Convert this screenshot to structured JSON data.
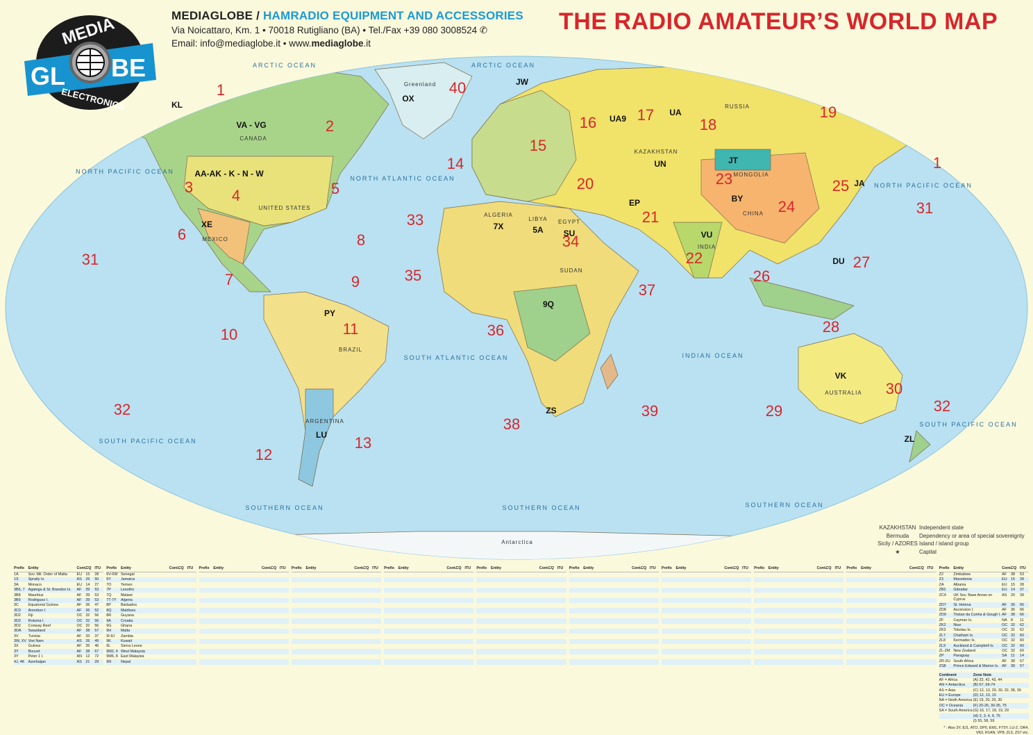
{
  "brand": {
    "logo_text": [
      "MEDIA",
      "GL",
      "BE",
      "ELECTRONICS"
    ],
    "name": "MEDIAGLOBE",
    "separator": " / ",
    "tagline": "HAMRADIO EQUIPMENT AND ACCESSORIES",
    "address": "Via Noicattaro, Km. 1 • 70018 Rutigliano (BA) • Tel./Fax +39 080 3008524",
    "phone_icon": "whatsapp-icon",
    "email_prefix": "Email: info@mediaglobe.it • www.",
    "web_bold": "mediaglobe",
    "web_suffix": ".it"
  },
  "title": "THE RADIO AMATEUR’S WORLD MAP",
  "colors": {
    "title": "#d8262b",
    "accent": "#1a9ad6",
    "ocean": "#b9e1f1",
    "zone_numbers": "#d8262b",
    "background": "#fbf9dc"
  },
  "map": {
    "cq_zones": [
      "1",
      "1",
      "2",
      "3",
      "4",
      "5",
      "6",
      "7",
      "8",
      "9",
      "10",
      "11",
      "12",
      "13",
      "14",
      "15",
      "16",
      "17",
      "18",
      "19",
      "20",
      "21",
      "22",
      "23",
      "24",
      "25",
      "26",
      "27",
      "28",
      "29",
      "30",
      "31",
      "31",
      "32",
      "32",
      "33",
      "34",
      "35",
      "36",
      "37",
      "38",
      "39",
      "40"
    ],
    "oceans": [
      "NORTH PACIFIC OCEAN",
      "NORTH ATLANTIC OCEAN",
      "SOUTH ATLANTIC OCEAN",
      "INDIAN OCEAN",
      "SOUTH PACIFIC OCEAN",
      "SOUTHERN OCEAN",
      "SOUTHERN OCEAN",
      "SOUTHERN OCEAN",
      "NORTH PACIFIC OCEAN",
      "ARCTIC OCEAN",
      "ARCTIC OCEAN",
      "SOUTH PACIFIC OCEAN"
    ],
    "regions": [
      "Antarctica",
      "Greenland",
      "CANADA",
      "UNITED STATES",
      "RUSSIA",
      "BRAZIL",
      "CHINA",
      "INDIA",
      "AUSTRALIA",
      "ALGERIA",
      "LIBYA",
      "EGYPT",
      "SUDAN",
      "KAZAKHSTAN",
      "ARGENTINA",
      "MONGOLIA",
      "MEXICO"
    ],
    "prefixes": [
      "KL",
      "VA - VG",
      "AA-AK - K - N - W",
      "XE",
      "PY",
      "LU",
      "UA",
      "UA9",
      "UN",
      "BY",
      "JT",
      "VU",
      "VK",
      "ZL",
      "ZS",
      "7X",
      "5A",
      "SU",
      "JA",
      "DU",
      "OX",
      "JW",
      "9Q",
      "EP"
    ]
  },
  "legend": [
    {
      "key": "KAZAKHSTAN",
      "desc": "Independent state"
    },
    {
      "key": "Bermuda",
      "desc": "Dependency or area of special sovereignty"
    },
    {
      "key": "Sicily / AZORES",
      "desc": "Island / island group"
    },
    {
      "key": "★",
      "desc": "Capital"
    }
  ],
  "table": {
    "headers": [
      "Prefix",
      "Entity",
      "Cont.",
      "CQ",
      "ITU"
    ],
    "columns": [
      [
        [
          "1A",
          "Sov. Mil. Order of Malta",
          "EU",
          "15",
          "28"
        ],
        [
          "1S",
          "Spratly Is.",
          "AS",
          "26",
          "50"
        ],
        [
          "3A",
          "Monaco",
          "EU",
          "14",
          "27"
        ],
        [
          "3B6, 7",
          "Agalega & St. Brandon Is.",
          "AF",
          "39",
          "53"
        ],
        [
          "3B8",
          "Mauritius",
          "AF",
          "39",
          "53"
        ],
        [
          "3B9",
          "Rodriguez I.",
          "AF",
          "39",
          "53"
        ],
        [
          "3C",
          "Equatorial Guinea",
          "AF",
          "36",
          "47"
        ],
        [
          "3C0",
          "Annobon I.",
          "AF",
          "36",
          "52"
        ],
        [
          "3D2",
          "Fiji",
          "OC",
          "32",
          "56"
        ],
        [
          "3D2",
          "Rotuma I.",
          "OC",
          "32",
          "56"
        ],
        [
          "3D2",
          "Conway Reef",
          "OC",
          "32",
          "56"
        ],
        [
          "3DA",
          "Swaziland",
          "AF",
          "38",
          "57"
        ],
        [
          "3V",
          "Tunisia",
          "AF",
          "33",
          "37"
        ],
        [
          "3W, XV",
          "Viet Nam",
          "AS",
          "26",
          "49"
        ],
        [
          "3X",
          "Guinea",
          "AF",
          "35",
          "46"
        ],
        [
          "3Y",
          "Bouvet",
          "AF",
          "38",
          "67"
        ],
        [
          "3Y",
          "Peter 1 I.",
          "AN",
          "12",
          "72"
        ],
        [
          "4J, 4K",
          "Azerbaijan",
          "AS",
          "21",
          "29"
        ]
      ],
      [
        [
          "6V-6W",
          "Senegal"
        ],
        [
          "6Y",
          "Jamaica"
        ],
        [
          "7O",
          "Yemen"
        ],
        [
          "7P",
          "Lesotho"
        ],
        [
          "7Q",
          "Malawi"
        ],
        [
          "7T-7Y",
          "Algeria"
        ],
        [
          "8P",
          "Barbados"
        ],
        [
          "8Q",
          "Maldives"
        ],
        [
          "8R",
          "Guyana"
        ],
        [
          "9A",
          "Croatia"
        ],
        [
          "9G",
          "Ghana"
        ],
        [
          "9H",
          "Malta"
        ],
        [
          "9I-9J",
          "Zambia"
        ],
        [
          "9K",
          "Kuwait"
        ],
        [
          "9L",
          "Sierra Leone"
        ],
        [
          "9M2, 4",
          "West Malaysia"
        ],
        [
          "9M6, 8",
          "East Malaysia"
        ],
        [
          "9N",
          "Nepal"
        ]
      ],
      [
        [
          "Z2",
          "Zimbabwe",
          "AF",
          "38",
          "53"
        ],
        [
          "Z3",
          "Macedonia",
          "EU",
          "15",
          "28"
        ],
        [
          "ZA",
          "Albania",
          "EU",
          "15",
          "28"
        ],
        [
          "ZB2",
          "Gibraltar",
          "EU",
          "14",
          "37"
        ],
        [
          "ZC4",
          "UK Sov. Base Areas on Cyprus",
          "AS",
          "20",
          "39"
        ],
        [
          "ZD7",
          "St. Helena",
          "AF",
          "36",
          "66"
        ],
        [
          "ZD8",
          "Ascension I.",
          "AF",
          "36",
          "66"
        ],
        [
          "ZD9",
          "Tristan da Cunha & Gough I.",
          "AF",
          "38",
          "66"
        ],
        [
          "ZF",
          "Cayman Is.",
          "NA",
          "8",
          "11"
        ],
        [
          "ZK2",
          "Niue",
          "OC",
          "32",
          "62"
        ],
        [
          "ZK3",
          "Tokelau Is.",
          "OC",
          "31",
          "62"
        ],
        [
          "ZL7",
          "Chatham Is.",
          "OC",
          "32",
          "60"
        ],
        [
          "ZL8",
          "Kermadec Is.",
          "OC",
          "32",
          "60"
        ],
        [
          "ZL9",
          "Auckland & Campbell Is.",
          "OC",
          "32",
          "60"
        ],
        [
          "ZL-ZM",
          "New Zealand",
          "OC",
          "32",
          "60"
        ],
        [
          "ZP",
          "Paraguay",
          "SA",
          "11",
          "14"
        ],
        [
          "ZR-ZU",
          "South Africa",
          "AF",
          "38",
          "57"
        ],
        [
          "ZS8",
          "Prince Edward & Marion Is.",
          "AF",
          "38",
          "57"
        ]
      ]
    ],
    "notes_headers": [
      "Continent",
      "Zone Note"
    ],
    "notes": [
      [
        "AF = Africa",
        "(A) 33, 42, 43, 44"
      ],
      [
        "AN = Antarctica",
        "(B) 67, 69-74"
      ],
      [
        "AS = Asia",
        "(C) 12, 13, 29, 30, 32, 38, 39"
      ],
      [
        "EU = Europe",
        "(D) 12, 13, 15"
      ],
      [
        "NA = North America",
        "(E) 19, 20, 29, 30"
      ],
      [
        "OC = Oceania",
        "(F) 20-26, 30-35, 75"
      ],
      [
        "SA = South America",
        "(G) 16, 17, 18, 19, 29"
      ],
      [
        "",
        "(H) 2, 3, 4, 9, 75"
      ],
      [
        "",
        "(I) 55, 58, 59"
      ]
    ],
    "footnote": "* : Also 3Y, 8J1, ATO, DP0, EM1, FT5Y, LU-Z, OR4, VK0, R1AN, VP8, ZL5, ZS7 etc."
  }
}
